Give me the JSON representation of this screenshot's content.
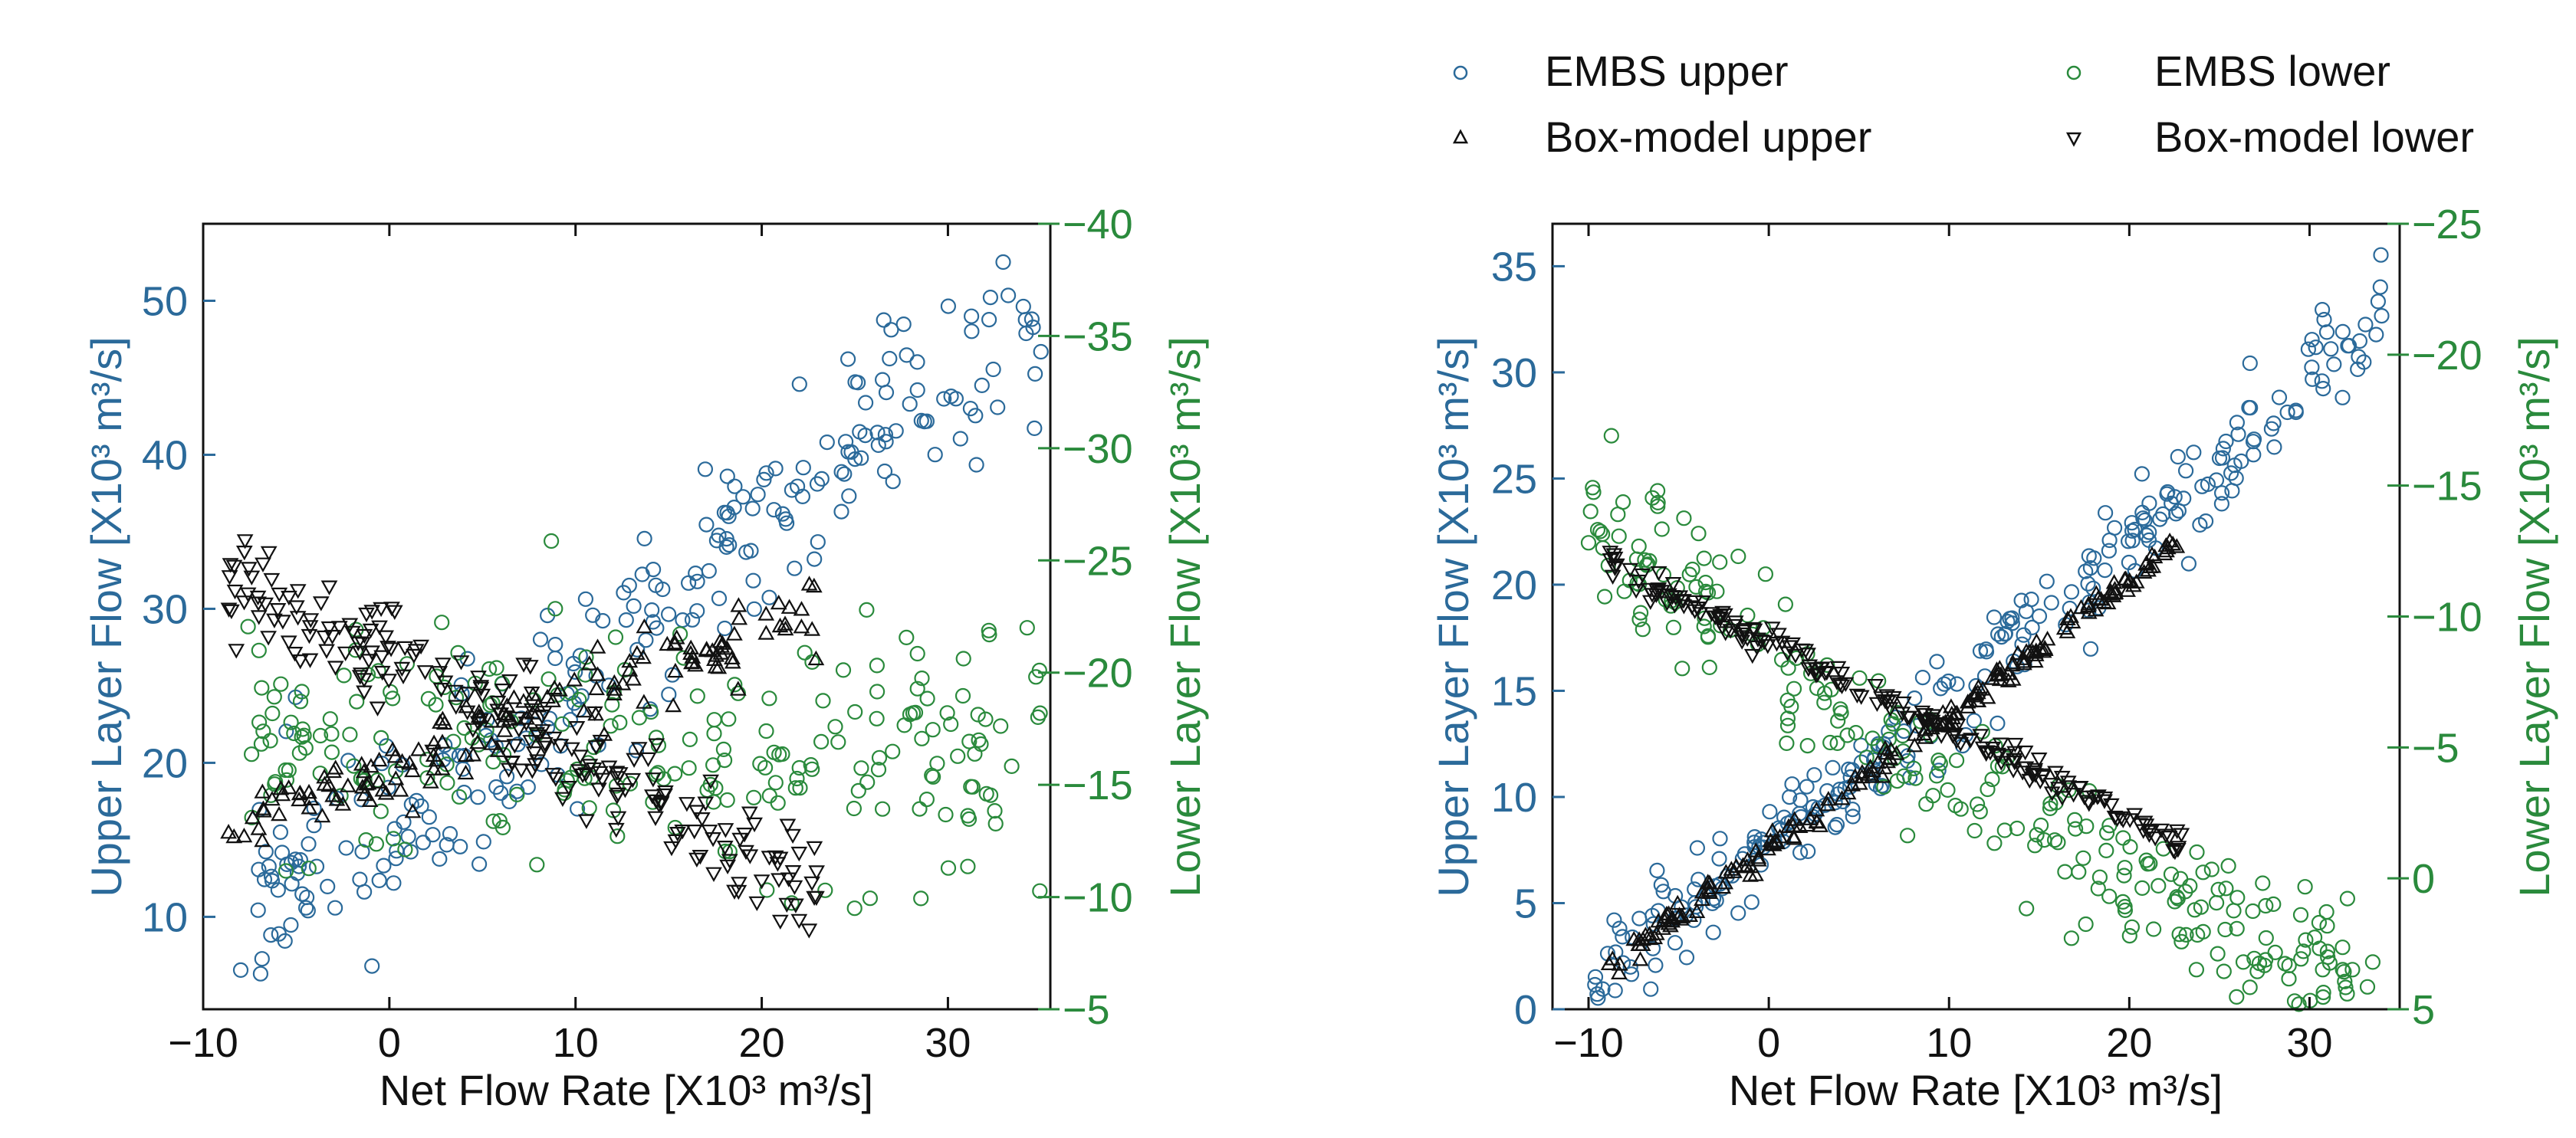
{
  "colors": {
    "upper": "#2b6a9a",
    "lower": "#2a8a3c",
    "model": "#111111",
    "frame": "#111111"
  },
  "legend": {
    "embs_upper": "EMBS upper",
    "embs_lower": "EMBS lower",
    "box_upper": "Box-model upper",
    "box_lower": "Box-model lower"
  },
  "chart_data": [
    {
      "type": "scatter",
      "panel": "left",
      "xlabel": "Net Flow Rate [X10³ m³/s]",
      "ylabel": "Upper Layer Flow [X10³ m³/s]",
      "ylabel_right": "Lower Layer Flow [X10³ m³/s]",
      "xlim": [
        -10,
        35.5
      ],
      "ylim": [
        4,
        55
      ],
      "ylim_right": [
        -5,
        -40
      ],
      "xticks": [
        -10,
        0,
        10,
        20,
        30
      ],
      "xtick_labels": [
        "−10",
        "0",
        "10",
        "20",
        "30"
      ],
      "yticks": [
        10,
        20,
        30,
        40,
        50
      ],
      "ytick_labels": [
        "10",
        "20",
        "30",
        "40",
        "50"
      ],
      "yticks_right": [
        -5,
        -10,
        -15,
        -20,
        -25,
        -30,
        -35,
        -40
      ],
      "ytick_labels_right": [
        "−5",
        "−10",
        "−15",
        "−20",
        "−25",
        "−30",
        "−35",
        "−40"
      ],
      "series": [
        {
          "name": "EMBS upper",
          "marker": "circle",
          "axis": "left",
          "n": 250,
          "x_range": [
            -8,
            35
          ],
          "trend": {
            "slope": 0.93,
            "intercept": 16.5
          },
          "noise": 3.5,
          "seed": 11
        },
        {
          "name": "EMBS lower",
          "marker": "circle",
          "axis": "right",
          "n": 240,
          "x_range": [
            -8,
            35
          ],
          "trend": {
            "slope": 0.01,
            "intercept": -16.5
          },
          "noise": 2.6,
          "seed": 23
        },
        {
          "name": "Box-model upper",
          "marker": "triangle-up",
          "axis": "left",
          "n": 150,
          "x_range": [
            -9,
            23
          ],
          "trend": {
            "slope": 0.45,
            "intercept": 19.5
          },
          "noise": 1.3,
          "seed": 37
        },
        {
          "name": "Box-model lower",
          "marker": "triangle-down",
          "axis": "left",
          "n": 220,
          "x_range": [
            -9,
            23
          ],
          "trend": {
            "slope": -0.65,
            "intercept": 26.5
          },
          "noise": 1.8,
          "seed": 41
        }
      ]
    },
    {
      "type": "scatter",
      "panel": "right",
      "xlabel": "Net Flow Rate [X10³ m³/s]",
      "ylabel": "Upper Layer Flow [X10³ m³/s]",
      "ylabel_right": "Lower Layer Flow [X10³ m³/s]",
      "xlim": [
        -12,
        35
      ],
      "ylim": [
        0,
        37
      ],
      "ylim_right": [
        5,
        -25
      ],
      "xticks": [
        -10,
        0,
        10,
        20,
        30
      ],
      "xtick_labels": [
        "−10",
        "0",
        "10",
        "20",
        "30"
      ],
      "yticks": [
        0,
        5,
        10,
        15,
        20,
        25,
        30,
        35
      ],
      "ytick_labels": [
        "0",
        "5",
        "10",
        "15",
        "20",
        "25",
        "30",
        "35"
      ],
      "yticks_right": [
        5,
        0,
        -5,
        -10,
        -15,
        -20,
        -25
      ],
      "ytick_labels_right": [
        "5",
        "0",
        "−5",
        "−10",
        "−15",
        "−20",
        "−25"
      ],
      "series": [
        {
          "name": "EMBS upper",
          "marker": "circle",
          "axis": "left",
          "n": 260,
          "x_range": [
            -10,
            34
          ],
          "trend": {
            "slope": 0.69,
            "intercept": 7.5,
            "curve": 0.0035
          },
          "noise": 1.2,
          "seed": 53
        },
        {
          "name": "EMBS lower",
          "marker": "circle",
          "axis": "right",
          "n": 260,
          "x_range": [
            -10,
            34
          ],
          "trend": {
            "slope": 0.44,
            "intercept": -8.3,
            "curve": -0.0035
          },
          "noise": 1.3,
          "seed": 67
        },
        {
          "name": "Box-model upper",
          "marker": "triangle-up",
          "axis": "left",
          "n": 200,
          "x_range": [
            -9,
            23
          ],
          "trend": {
            "slope": 0.63,
            "intercept": 7.6
          },
          "noise": 0.3,
          "seed": 71
        },
        {
          "name": "Box-model lower",
          "marker": "triangle-down",
          "axis": "left",
          "n": 200,
          "x_range": [
            -9,
            23
          ],
          "trend": {
            "slope": -0.415,
            "intercept": 17.3
          },
          "noise": 0.3,
          "seed": 83
        }
      ]
    }
  ]
}
